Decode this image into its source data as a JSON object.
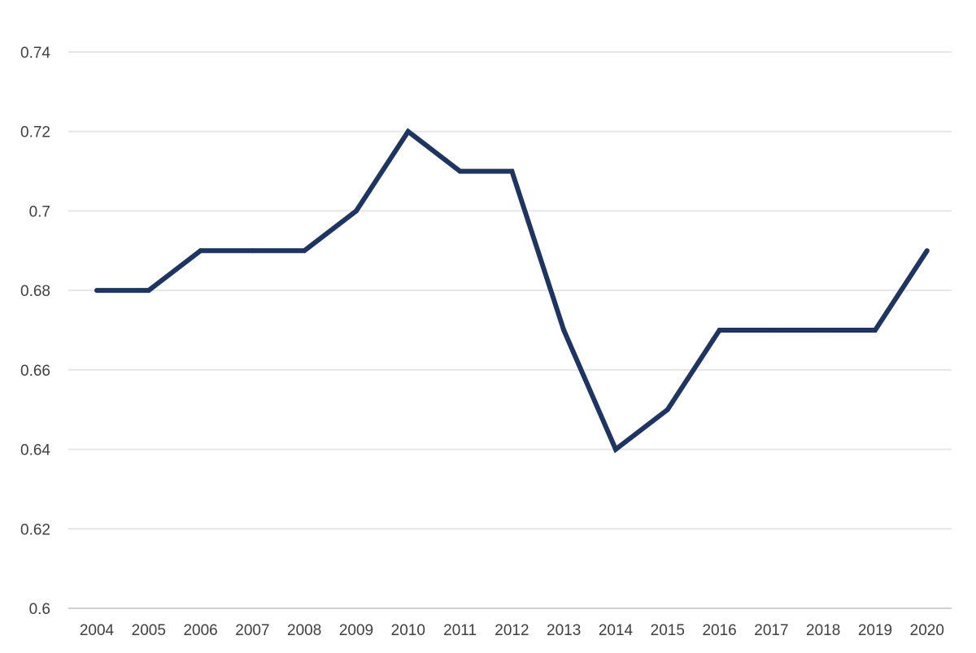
{
  "chart_data": {
    "type": "line",
    "title": "",
    "xlabel": "",
    "ylabel": "",
    "categories": [
      "2004",
      "2005",
      "2006",
      "2007",
      "2008",
      "2009",
      "2010",
      "2011",
      "2012",
      "2013",
      "2014",
      "2015",
      "2016",
      "2017",
      "2018",
      "2019",
      "2020"
    ],
    "series": [
      {
        "values": [
          0.68,
          0.68,
          0.69,
          0.69,
          0.69,
          0.7,
          0.72,
          0.71,
          0.71,
          0.67,
          0.64,
          0.65,
          0.67,
          0.67,
          0.67,
          0.67,
          0.69
        ]
      }
    ],
    "ylim": [
      0.6,
      0.74
    ],
    "yticks": [
      "0.6",
      "0.62",
      "0.64",
      "0.66",
      "0.68",
      "0.7",
      "0.72",
      "0.74"
    ],
    "grid": true,
    "legend": "none",
    "colors": {
      "series": "#1e3461",
      "grid": "#e6e6e6",
      "axis": "#d0d0d0",
      "text": "#404040"
    }
  }
}
